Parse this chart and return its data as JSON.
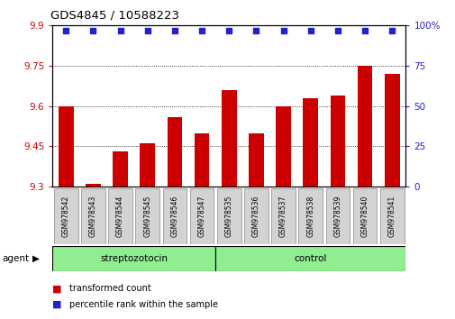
{
  "title": "GDS4845 / 10588223",
  "categories": [
    "GSM978542",
    "GSM978543",
    "GSM978544",
    "GSM978545",
    "GSM978546",
    "GSM978547",
    "GSM978535",
    "GSM978536",
    "GSM978537",
    "GSM978538",
    "GSM978539",
    "GSM978540",
    "GSM978541"
  ],
  "bar_values": [
    9.6,
    9.31,
    9.43,
    9.46,
    9.56,
    9.5,
    9.66,
    9.5,
    9.6,
    9.63,
    9.64,
    9.75,
    9.72
  ],
  "percentile_values": [
    97,
    97,
    97,
    97,
    97,
    97,
    97,
    97,
    97,
    97,
    97,
    97,
    97
  ],
  "bar_color": "#cc0000",
  "percentile_color": "#2222cc",
  "ylim_left": [
    9.3,
    9.9
  ],
  "ylim_right": [
    0,
    100
  ],
  "yticks_left": [
    9.3,
    9.45,
    9.6,
    9.75,
    9.9
  ],
  "yticks_right": [
    0,
    25,
    50,
    75,
    100
  ],
  "ytick_labels_left": [
    "9.3",
    "9.45",
    "9.6",
    "9.75",
    "9.9"
  ],
  "ytick_labels_right": [
    "0",
    "25",
    "50",
    "75",
    "100%"
  ],
  "group1_label": "streptozotocin",
  "group2_label": "control",
  "group1_count": 6,
  "group2_count": 7,
  "agent_label": "agent",
  "legend_bar_label": "transformed count",
  "legend_pct_label": "percentile rank within the sample",
  "group_bg_color": "#90EE90",
  "tick_label_bg": "#d3d3d3",
  "title_color": "#000000",
  "left_tick_color": "#cc0000",
  "right_tick_color": "#2222cc",
  "fig_width": 5.06,
  "fig_height": 3.54,
  "dpi": 100
}
